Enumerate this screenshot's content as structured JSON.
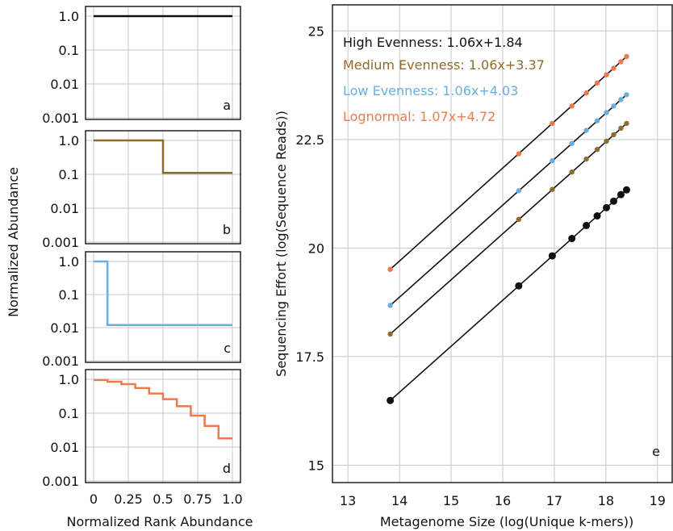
{
  "chart_data": [
    {
      "type": "line",
      "panel": "a",
      "ylabel": "Normalized Abundance",
      "y_scale": "log",
      "ylim": [
        0.001,
        1.0
      ],
      "xlim": [
        0,
        1.0
      ],
      "y_ticks": [
        "1.0",
        "0.1",
        "0.01",
        "0.001"
      ],
      "grid": true,
      "series": [
        {
          "color": "#111111",
          "x": [
            0.0,
            1.0
          ],
          "y": [
            1.0,
            1.0
          ]
        }
      ]
    },
    {
      "type": "line",
      "panel": "b",
      "y_scale": "log",
      "ylim": [
        0.001,
        1.0
      ],
      "xlim": [
        0,
        1.0
      ],
      "y_ticks": [
        "1.0",
        "0.1",
        "0.01",
        "0.001"
      ],
      "grid": true,
      "series": [
        {
          "color": "#8e6b2e",
          "x": [
            0.0,
            0.5,
            0.5,
            1.0
          ],
          "y": [
            1.0,
            1.0,
            0.11,
            0.11
          ]
        }
      ]
    },
    {
      "type": "line",
      "panel": "c",
      "y_scale": "log",
      "ylim": [
        0.001,
        1.0
      ],
      "xlim": [
        0,
        1.0
      ],
      "y_ticks": [
        "1.0",
        "0.1",
        "0.01",
        "0.001"
      ],
      "grid": true,
      "series": [
        {
          "color": "#6aaedf",
          "x": [
            0.0,
            0.1,
            0.1,
            1.0
          ],
          "y": [
            1.0,
            1.0,
            0.012,
            0.012
          ]
        }
      ]
    },
    {
      "type": "line",
      "panel": "d",
      "xlabel": "Normalized Rank Abundance",
      "y_scale": "log",
      "ylim": [
        0.001,
        1.0
      ],
      "xlim": [
        0,
        1.0
      ],
      "x_ticks": [
        "0",
        "0.25",
        "0.5",
        "0.75",
        "1.0"
      ],
      "y_ticks": [
        "1.0",
        "0.1",
        "0.01",
        "0.001"
      ],
      "grid": true,
      "series": [
        {
          "color": "#ee7a4c",
          "x": [
            0.0,
            0.1,
            0.1,
            0.2,
            0.2,
            0.3,
            0.3,
            0.4,
            0.4,
            0.5,
            0.5,
            0.6,
            0.6,
            0.7,
            0.7,
            0.8,
            0.8,
            0.9,
            0.9,
            1.0
          ],
          "y": [
            0.95,
            0.95,
            0.85,
            0.85,
            0.72,
            0.72,
            0.55,
            0.55,
            0.38,
            0.38,
            0.26,
            0.26,
            0.16,
            0.16,
            0.085,
            0.085,
            0.042,
            0.042,
            0.018,
            0.018
          ]
        }
      ]
    },
    {
      "type": "scatter",
      "panel": "e",
      "xlabel": "Metagenome Size (log(Unique k-mers))",
      "ylabel": "Sequencing Effort (log(Sequence Reads))",
      "xlim": [
        12.7,
        19.3
      ],
      "ylim": [
        14.6,
        25.6
      ],
      "x_ticks": [
        13,
        14,
        15,
        16,
        17,
        18,
        19
      ],
      "y_ticks": [
        15,
        17.5,
        20,
        22.5,
        25
      ],
      "grid": true,
      "legend_position": "top-left",
      "series": [
        {
          "name": "High Evenness: 1.06x+1.84",
          "color": "#111111",
          "x": [
            13.82,
            16.31,
            16.96,
            17.34,
            17.62,
            17.83,
            18.01,
            18.15,
            18.29,
            18.4
          ],
          "y": [
            16.49,
            19.13,
            19.82,
            20.22,
            20.52,
            20.74,
            20.93,
            21.08,
            21.23,
            21.34
          ]
        },
        {
          "name": "Medium Evenness: 1.06x+3.37",
          "color": "#8e6b2e",
          "x": [
            13.82,
            16.31,
            16.96,
            17.34,
            17.62,
            17.83,
            18.01,
            18.15,
            18.29,
            18.4
          ],
          "y": [
            18.02,
            20.66,
            21.35,
            21.75,
            22.05,
            22.27,
            22.46,
            22.61,
            22.76,
            22.87
          ]
        },
        {
          "name": "Low Evenness: 1.06x+4.03",
          "color": "#6aaedf",
          "x": [
            13.82,
            16.31,
            16.96,
            17.34,
            17.62,
            17.83,
            18.01,
            18.15,
            18.29,
            18.4
          ],
          "y": [
            18.68,
            21.32,
            22.01,
            22.41,
            22.71,
            22.93,
            23.12,
            23.27,
            23.42,
            23.53
          ]
        },
        {
          "name": "Lognormal: 1.07x+4.72",
          "color": "#ee7a4c",
          "x": [
            13.82,
            16.31,
            16.96,
            17.34,
            17.62,
            17.83,
            18.01,
            18.15,
            18.29,
            18.4
          ],
          "y": [
            19.51,
            22.17,
            22.87,
            23.27,
            23.57,
            23.8,
            23.99,
            24.14,
            24.29,
            24.41
          ]
        }
      ]
    }
  ]
}
